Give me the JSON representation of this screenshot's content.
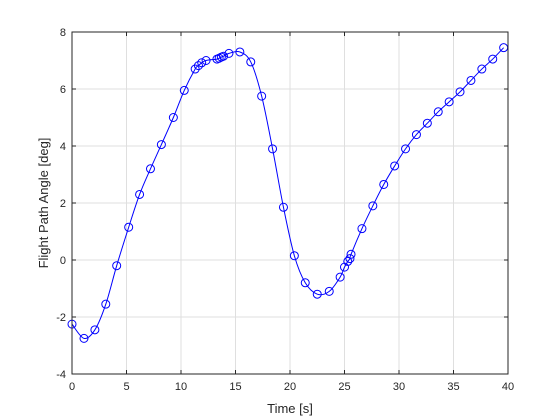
{
  "chart_data": {
    "type": "line",
    "title": "",
    "xlabel": "Time [s]",
    "ylabel": "Flight Path Angle [deg]",
    "xlim": [
      0,
      40
    ],
    "ylim": [
      -4,
      8
    ],
    "xticks": [
      0,
      5,
      10,
      15,
      20,
      25,
      30,
      35,
      40
    ],
    "yticks": [
      -4,
      -2,
      0,
      2,
      4,
      6,
      8
    ],
    "grid": true,
    "line_color": "#0000ff",
    "marker": "circle",
    "series": [
      {
        "x": [
          0,
          1.1,
          2.1,
          3.1,
          4.1,
          5.2,
          6.2,
          7.2,
          8.2,
          9.3,
          10.3,
          11.3,
          11.6,
          11.9,
          12.3,
          13.3,
          13.5,
          13.7,
          13.9,
          14.4,
          15.4,
          16.4,
          17.4,
          18.4,
          19.4,
          20.4,
          21.4,
          22.5,
          23.6,
          24.6,
          25.0,
          25.3,
          25.5,
          25.6,
          26.6,
          27.6,
          28.6,
          29.6,
          30.6,
          31.6,
          32.6,
          33.6,
          34.6,
          35.6,
          36.6,
          37.6,
          38.6,
          39.6
        ],
        "y": [
          -2.25,
          -2.75,
          -2.45,
          -1.55,
          -0.2,
          1.15,
          2.3,
          3.2,
          4.05,
          5.0,
          5.95,
          6.7,
          6.82,
          6.92,
          7.0,
          7.05,
          7.08,
          7.12,
          7.15,
          7.25,
          7.3,
          6.95,
          5.75,
          3.9,
          1.85,
          0.15,
          -0.8,
          -1.2,
          -1.1,
          -0.6,
          -0.25,
          -0.05,
          0.05,
          0.2,
          1.1,
          1.9,
          2.65,
          3.3,
          3.9,
          4.4,
          4.8,
          5.2,
          5.55,
          5.9,
          6.3,
          6.7,
          7.05,
          7.45
        ]
      }
    ]
  }
}
